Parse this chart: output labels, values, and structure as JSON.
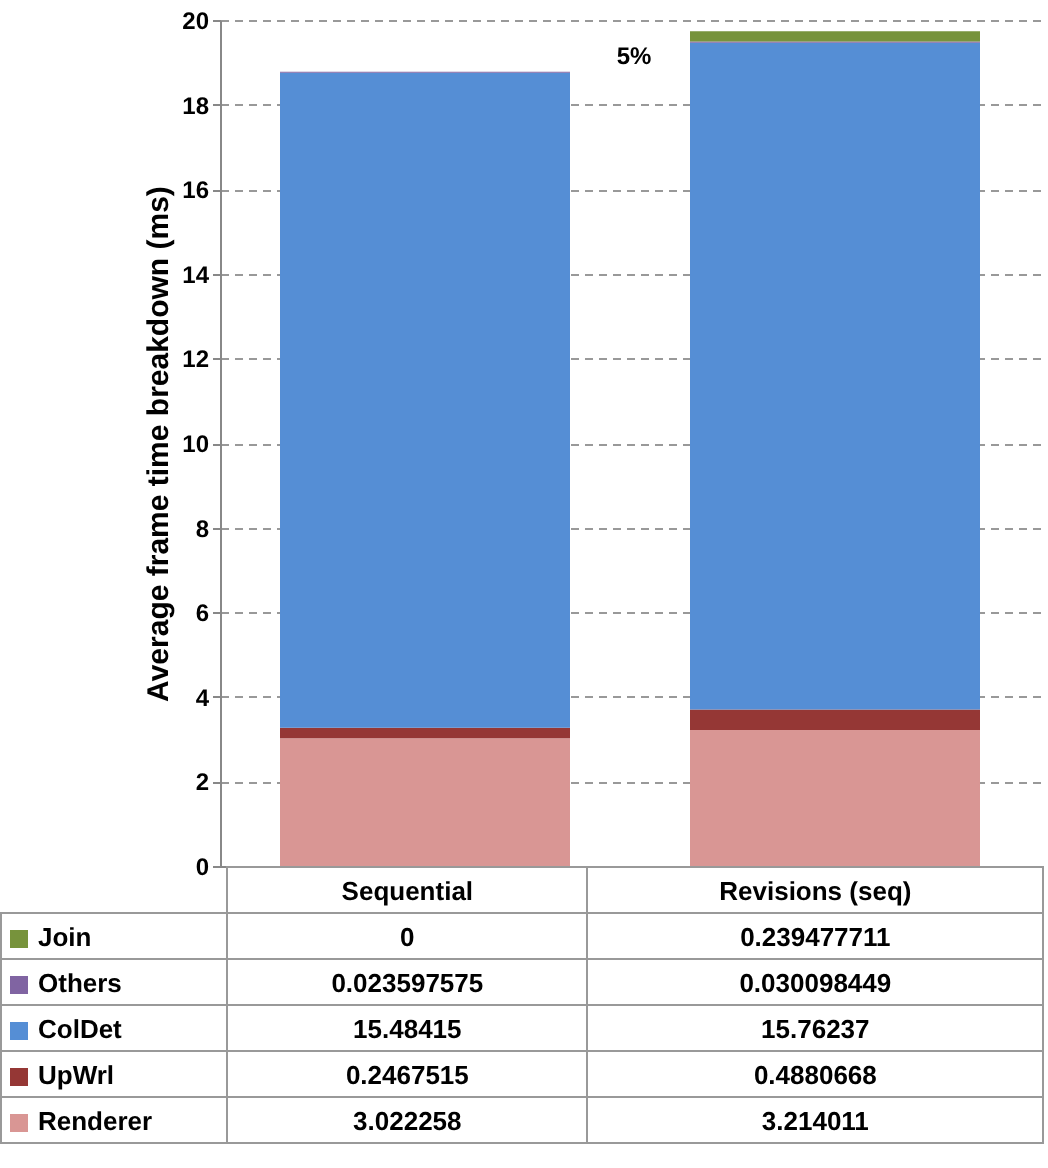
{
  "chart_data": {
    "type": "bar",
    "stacked": true,
    "ylabel": "Average frame time breakdown (ms)",
    "categories": [
      "Sequential",
      "Revisions (seq)"
    ],
    "series": [
      {
        "name": "Renderer",
        "color": "#d99694",
        "values": [
          3.022258,
          3.214011
        ]
      },
      {
        "name": "UpWrl",
        "color": "#953735",
        "values": [
          0.2467515,
          0.4880668
        ]
      },
      {
        "name": "ColDet",
        "color": "#558ed5",
        "values": [
          15.48415,
          15.76237
        ]
      },
      {
        "name": "Others",
        "color": "#8064a2",
        "values": [
          0.023597575,
          0.030098449
        ]
      },
      {
        "name": "Join",
        "color": "#77933c",
        "values": [
          0,
          0.239477711
        ]
      }
    ],
    "ylim": [
      0,
      20
    ],
    "yticks": [
      0,
      2,
      4,
      6,
      8,
      10,
      12,
      14,
      16,
      18,
      20
    ],
    "grid": "y",
    "data_labels": true,
    "legend": "bottom",
    "annotations": [
      "5%"
    ]
  }
}
